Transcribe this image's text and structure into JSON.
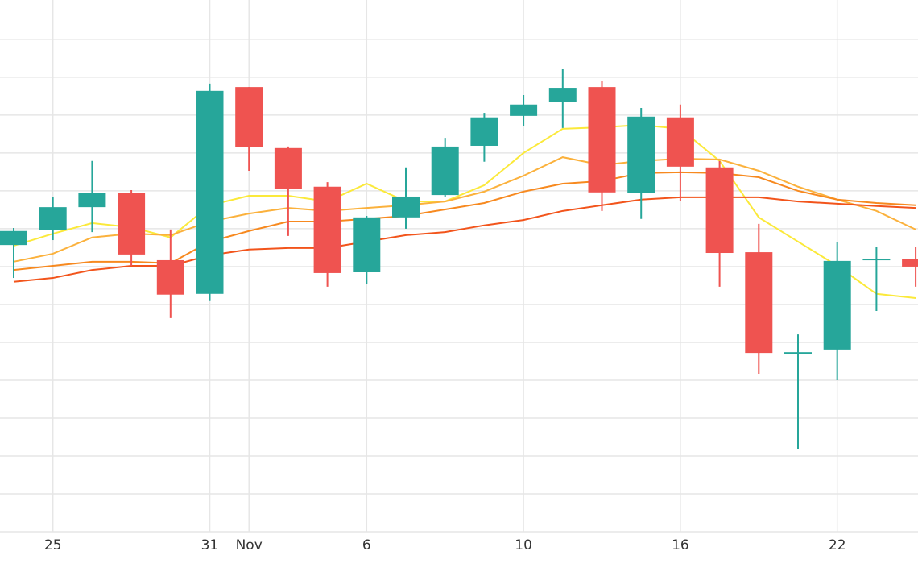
{
  "chart_data": {
    "type": "candlestick",
    "categories": [
      null,
      "25",
      null,
      null,
      null,
      "31",
      "Nov",
      null,
      null,
      "6",
      null,
      null,
      null,
      "10",
      null,
      null,
      null,
      "16",
      null,
      null,
      null,
      "22",
      null,
      null
    ],
    "open": [
      75.7,
      79.6,
      85.7,
      89.4,
      71.7,
      62.8,
      117.4,
      101.3,
      91.1,
      68.5,
      83.0,
      88.9,
      101.9,
      109.8,
      113.4,
      117.4,
      89.4,
      109.4,
      96.2,
      73.8,
      47.4,
      48.1,
      72.1,
      72.1
    ],
    "high": [
      80.2,
      88.3,
      97.9,
      90.2,
      79.8,
      118.3,
      117.4,
      101.7,
      92.3,
      83.4,
      96.2,
      104.0,
      110.6,
      115.3,
      122.1,
      119.1,
      111.9,
      112.8,
      97.9,
      81.3,
      52.1,
      76.4,
      75.1,
      75.3
    ],
    "low": [
      67.0,
      77.0,
      79.1,
      70.2,
      56.4,
      61.1,
      95.3,
      78.1,
      64.7,
      65.5,
      80.0,
      88.3,
      97.7,
      107.0,
      106.6,
      84.7,
      82.6,
      87.4,
      64.7,
      41.7,
      21.9,
      40.0,
      58.3,
      64.7
    ],
    "close": [
      79.4,
      85.7,
      89.4,
      73.2,
      62.6,
      116.4,
      101.5,
      90.6,
      68.3,
      83.0,
      88.5,
      101.7,
      109.4,
      112.8,
      117.2,
      89.6,
      109.6,
      96.4,
      73.6,
      47.2,
      47.4,
      71.5,
      72.1,
      70.0
    ],
    "up_color": "#26a69a",
    "down_color": "#ef5350",
    "lines": [
      {
        "color": "#fbe93a",
        "values": [
          75.5,
          78.7,
          81.5,
          80.4,
          77.7,
          86.2,
          88.7,
          88.7,
          87.2,
          91.9,
          87.2,
          87.2,
          91.5,
          100.0,
          106.4,
          106.8,
          107.4,
          106.4,
          97.9,
          83.0,
          76.6,
          70.2,
          62.8,
          61.7
        ]
      },
      {
        "color": "#fbb13c",
        "values": [
          71.3,
          73.4,
          77.7,
          78.7,
          78.3,
          81.9,
          84.0,
          85.5,
          84.7,
          85.5,
          86.2,
          87.2,
          89.8,
          94.0,
          98.9,
          96.8,
          97.9,
          98.5,
          98.3,
          95.3,
          91.1,
          87.7,
          84.7,
          79.8
        ]
      },
      {
        "color": "#f7891f",
        "values": [
          69.1,
          70.2,
          71.3,
          71.3,
          70.9,
          76.6,
          79.4,
          81.9,
          81.9,
          82.6,
          83.4,
          85.1,
          86.8,
          89.8,
          91.9,
          92.6,
          94.7,
          94.9,
          94.7,
          93.6,
          90.0,
          87.7,
          86.8,
          86.2
        ]
      },
      {
        "color": "#f2541b",
        "values": [
          66.0,
          67.0,
          69.1,
          70.2,
          70.2,
          73.0,
          74.5,
          74.9,
          74.9,
          76.6,
          78.3,
          79.1,
          80.9,
          82.3,
          84.7,
          86.2,
          87.7,
          88.3,
          88.3,
          88.3,
          87.2,
          86.6,
          86.0,
          85.5
        ]
      }
    ],
    "ylim": [
      0,
      140.4
    ],
    "yticks": [
      0,
      10,
      20,
      30,
      40,
      50,
      60,
      70,
      80,
      90,
      100,
      110,
      120,
      130
    ],
    "grid": true
  }
}
